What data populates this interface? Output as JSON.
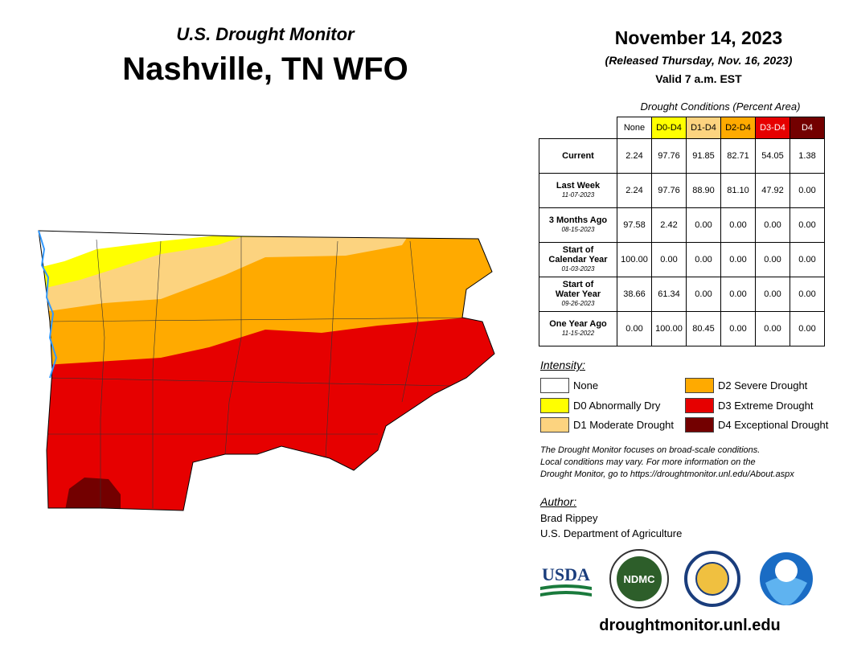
{
  "header": {
    "subtitle": "U.S. Drought Monitor",
    "title": "Nashville, TN WFO"
  },
  "date": {
    "date": "November 14, 2023",
    "released": "(Released Thursday, Nov. 16, 2023)",
    "valid": "Valid 7 a.m. EST"
  },
  "table": {
    "caption": "Drought Conditions (Percent Area)",
    "columns": [
      {
        "label": "None",
        "color": "#ffffff",
        "text_color": "#000000"
      },
      {
        "label": "D0-D4",
        "color": "#ffff00",
        "text_color": "#000000"
      },
      {
        "label": "D1-D4",
        "color": "#fcd37f",
        "text_color": "#000000"
      },
      {
        "label": "D2-D4",
        "color": "#ffaa00",
        "text_color": "#000000"
      },
      {
        "label": "D3-D4",
        "color": "#e60000",
        "text_color": "#ffffff"
      },
      {
        "label": "D4",
        "color": "#730000",
        "text_color": "#ffffff"
      }
    ],
    "rows": [
      {
        "label": [
          "Current"
        ],
        "values": [
          "2.24",
          "97.76",
          "91.85",
          "82.71",
          "54.05",
          "1.38"
        ]
      },
      {
        "label": [
          "Last Week"
        ],
        "date": "11-07-2023",
        "values": [
          "2.24",
          "97.76",
          "88.90",
          "81.10",
          "47.92",
          "0.00"
        ]
      },
      {
        "label": [
          "3 Months Ago"
        ],
        "date": "08-15-2023",
        "values": [
          "97.58",
          "2.42",
          "0.00",
          "0.00",
          "0.00",
          "0.00"
        ]
      },
      {
        "label": [
          "Start of",
          "Calendar Year"
        ],
        "date": "01-03-2023",
        "values": [
          "100.00",
          "0.00",
          "0.00",
          "0.00",
          "0.00",
          "0.00"
        ]
      },
      {
        "label": [
          "Start of",
          "Water Year"
        ],
        "date": "09-26-2023",
        "values": [
          "38.66",
          "61.34",
          "0.00",
          "0.00",
          "0.00",
          "0.00"
        ]
      },
      {
        "label": [
          "One Year Ago"
        ],
        "date": "11-15-2022",
        "values": [
          "0.00",
          "100.00",
          "80.45",
          "0.00",
          "0.00",
          "0.00"
        ]
      }
    ]
  },
  "legend": {
    "title": "Intensity:",
    "items": [
      {
        "label": "None",
        "color": "#ffffff"
      },
      {
        "label": "D0 Abnormally Dry",
        "color": "#ffff00"
      },
      {
        "label": "D1 Moderate Drought",
        "color": "#fcd37f"
      },
      {
        "label": "D2 Severe Drought",
        "color": "#ffaa00"
      },
      {
        "label": "D3 Extreme Drought",
        "color": "#e60000"
      },
      {
        "label": "D4 Exceptional Drought",
        "color": "#730000"
      }
    ]
  },
  "note": [
    "The Drought Monitor focuses on broad-scale conditions.",
    "Local conditions may vary. For more information on the",
    "Drought Monitor, go to https://droughtmonitor.unl.edu/About.aspx"
  ],
  "author": {
    "title": "Author:",
    "name": "Brad Rippey",
    "organization": "U.S. Department of Agriculture"
  },
  "logos": {
    "usda": "USDA",
    "ndmc": "NDMC"
  },
  "footer": "droughtmonitor.unl.edu"
}
